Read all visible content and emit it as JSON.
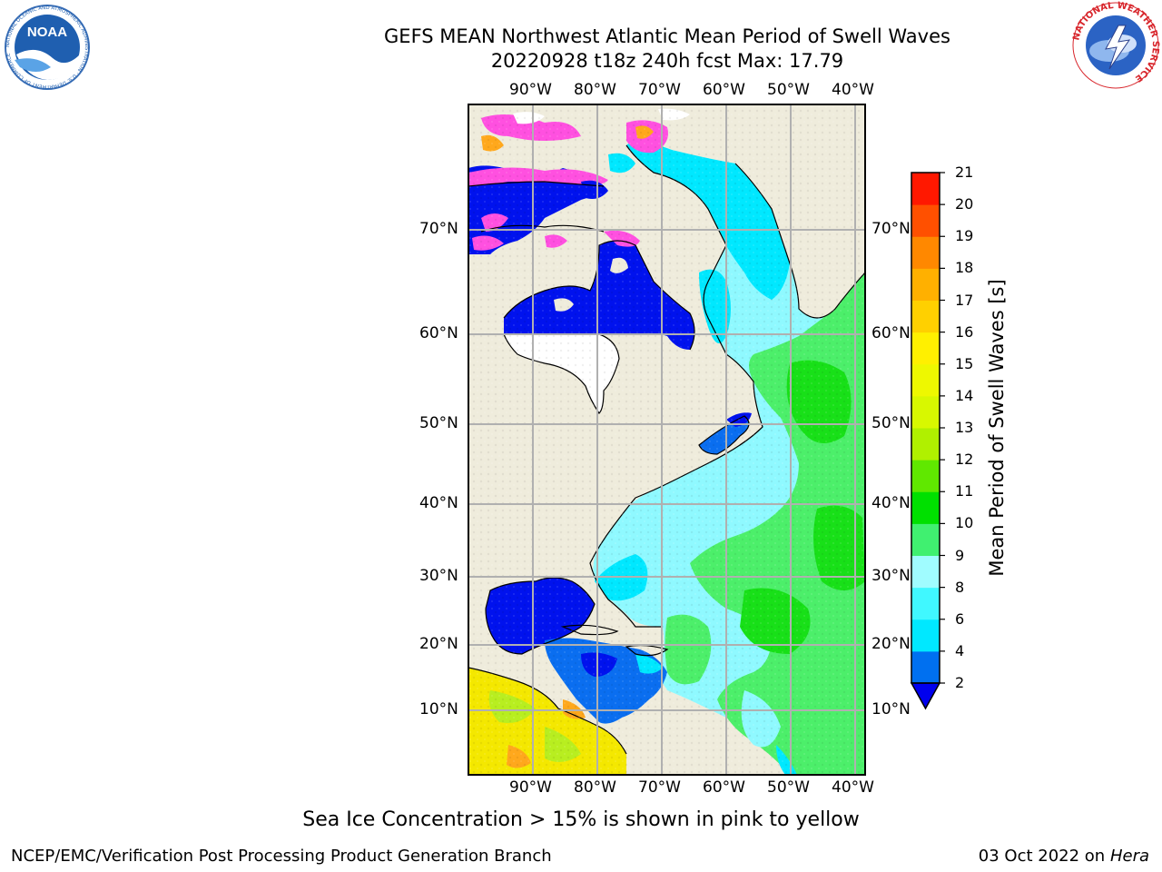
{
  "header": {
    "title_line1": "GEFS MEAN Northwest Atlantic Mean Period of Swell Waves",
    "title_line2": "20220928 t18z 240h fcst   Max: 17.79"
  },
  "logos": {
    "left": "NOAA",
    "left_ring_text": "NATIONAL OCEANIC AND ATMOSPHERIC ADMINISTRATION · U.S. DEPARTMENT OF COMMERCE",
    "right_ring_text": "NATIONAL WEATHER SERVICE"
  },
  "map": {
    "lon_labels": [
      "90°W",
      "80°W",
      "70°W",
      "60°W",
      "50°W",
      "40°W"
    ],
    "lat_labels": [
      "70°N",
      "60°N",
      "50°N",
      "40°N",
      "30°N",
      "20°N",
      "10°N"
    ],
    "colors": {
      "land": "#efecdc",
      "deep_blue": "#0012ee",
      "blue": "#0a6ef0",
      "cyan": "#00e8ff",
      "light_cyan": "#8ff9ff",
      "light_green": "#4cef6a",
      "green": "#18e018",
      "yellow_green": "#b8ee20",
      "yellow": "#f4e800",
      "orange": "#ffa81c",
      "ice_pink": "#ff50e0"
    }
  },
  "colorbar": {
    "title": "Mean Period of Swell Waves [s]",
    "ticks": [
      "2",
      "4",
      "6",
      "8",
      "9",
      "10",
      "11",
      "12",
      "13",
      "14",
      "15",
      "16",
      "17",
      "18",
      "19",
      "20",
      "21"
    ],
    "colors": [
      "#0070f0",
      "#00e8ff",
      "#40f8ff",
      "#a0fcff",
      "#40f070",
      "#00e000",
      "#60e800",
      "#b0f000",
      "#d8f800",
      "#eef800",
      "#fff000",
      "#ffd000",
      "#ffb000",
      "#ff8800",
      "#ff5000",
      "#ff1800"
    ],
    "under_color": "#0000ee"
  },
  "footnote": "Sea Ice Concentration > 15% is shown in pink to yellow",
  "credit": "NCEP/EMC/Verification Post Processing Product Generation Branch",
  "run_date": "03 Oct 2022 on",
  "run_host": "Hera"
}
